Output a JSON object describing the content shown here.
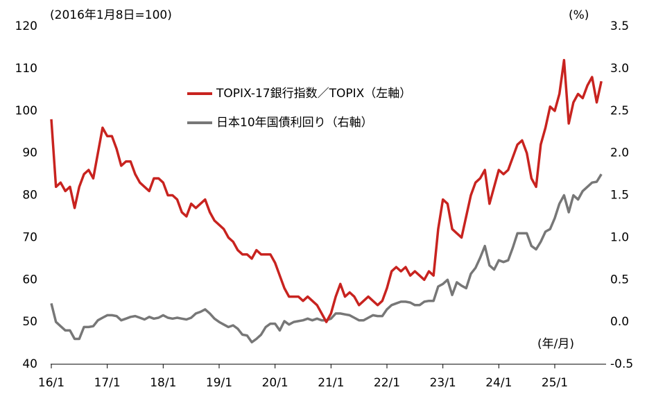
{
  "chart_data": {
    "type": "line",
    "annotations": [
      "(2016年1月8日=100)",
      "(%)",
      "(年/月)"
    ],
    "categories": [
      "16/1",
      null,
      null,
      null,
      null,
      null,
      null,
      null,
      null,
      null,
      null,
      null,
      "17/1",
      null,
      null,
      null,
      null,
      null,
      null,
      null,
      null,
      null,
      null,
      null,
      "18/1",
      null,
      null,
      null,
      null,
      null,
      null,
      null,
      null,
      null,
      null,
      null,
      "19/1",
      null,
      null,
      null,
      null,
      null,
      null,
      null,
      null,
      null,
      null,
      null,
      "20/1",
      null,
      null,
      null,
      null,
      null,
      null,
      null,
      null,
      null,
      null,
      null,
      "21/1",
      null,
      null,
      null,
      null,
      null,
      null,
      null,
      null,
      null,
      null,
      null,
      "22/1",
      null,
      null,
      null,
      null,
      null,
      null,
      null,
      null,
      null,
      null,
      null,
      "23/1",
      null,
      null,
      null,
      null,
      null,
      null,
      null,
      null,
      null,
      null,
      null,
      "24/1",
      null,
      null,
      null,
      null,
      null,
      null,
      null,
      null,
      null,
      null,
      null,
      "25/1",
      null,
      null,
      null,
      null,
      null,
      null,
      null,
      null,
      null,
      null
    ],
    "series": [
      {
        "name": "TOPIX-17銀行指数／TOPIX（左軸）",
        "color": "#c8231f",
        "axis": "y",
        "values": [
          98,
          82,
          83,
          81,
          82,
          77,
          82,
          85,
          86,
          84,
          90,
          96,
          94,
          94,
          91,
          87,
          88,
          88,
          85,
          83,
          82,
          81,
          84,
          84,
          83,
          80,
          80,
          79,
          76,
          75,
          78,
          77,
          78,
          79,
          76,
          74,
          73,
          72,
          70,
          69,
          67,
          66,
          66,
          65,
          67,
          66,
          66,
          66,
          64,
          61,
          58,
          56,
          56,
          56,
          55,
          56,
          55,
          54,
          52,
          50,
          52,
          56,
          59,
          56,
          57,
          56,
          54,
          55,
          56,
          55,
          54,
          55,
          58,
          62,
          63,
          62,
          63,
          61,
          62,
          61,
          60,
          62,
          61,
          72,
          79,
          78,
          72,
          71,
          70,
          75,
          80,
          83,
          84,
          86,
          78,
          82,
          86,
          85,
          86,
          89,
          92,
          93,
          90,
          84,
          82,
          92,
          96,
          101,
          100,
          104,
          112,
          97,
          102,
          104,
          103,
          106,
          108,
          102,
          107
        ]
      },
      {
        "name": "日本10年国債利回り（右軸）",
        "color": "#777777",
        "axis": "y2",
        "values": [
          0.22,
          0.0,
          -0.05,
          -0.1,
          -0.1,
          -0.2,
          -0.2,
          -0.06,
          -0.06,
          -0.05,
          0.02,
          0.05,
          0.08,
          0.08,
          0.07,
          0.02,
          0.04,
          0.06,
          0.07,
          0.05,
          0.03,
          0.06,
          0.04,
          0.05,
          0.08,
          0.05,
          0.04,
          0.05,
          0.04,
          0.03,
          0.05,
          0.1,
          0.12,
          0.15,
          0.1,
          0.04,
          0.0,
          -0.03,
          -0.06,
          -0.04,
          -0.08,
          -0.15,
          -0.16,
          -0.24,
          -0.2,
          -0.15,
          -0.06,
          -0.02,
          -0.02,
          -0.1,
          0.01,
          -0.03,
          0.0,
          0.01,
          0.02,
          0.04,
          0.02,
          0.04,
          0.02,
          0.02,
          0.04,
          0.1,
          0.1,
          0.09,
          0.08,
          0.05,
          0.02,
          0.02,
          0.05,
          0.08,
          0.07,
          0.07,
          0.15,
          0.2,
          0.22,
          0.24,
          0.24,
          0.23,
          0.2,
          0.2,
          0.24,
          0.25,
          0.25,
          0.42,
          0.45,
          0.5,
          0.32,
          0.47,
          0.43,
          0.4,
          0.57,
          0.64,
          0.76,
          0.9,
          0.67,
          0.62,
          0.73,
          0.71,
          0.73,
          0.88,
          1.05,
          1.05,
          1.05,
          0.9,
          0.86,
          0.95,
          1.07,
          1.1,
          1.23,
          1.4,
          1.5,
          1.3,
          1.5,
          1.45,
          1.55,
          1.6,
          1.65,
          1.66,
          1.75
        ]
      }
    ],
    "ylim": [
      40,
      120
    ],
    "yticks": [
      40,
      50,
      60,
      70,
      80,
      90,
      100,
      110,
      120
    ],
    "y2lim": [
      -0.5,
      3.5
    ],
    "y2ticks": [
      -0.5,
      {
        "value": 0,
        "label": "0.0"
      },
      {
        "value": 0.5,
        "label": "0.5"
      },
      {
        "value": 1,
        "label": "1.0"
      },
      1.5,
      {
        "value": 2,
        "label": "2.0"
      },
      2.5,
      {
        "value": 3,
        "label": "3.0"
      },
      3.5
    ],
    "grid": false
  }
}
